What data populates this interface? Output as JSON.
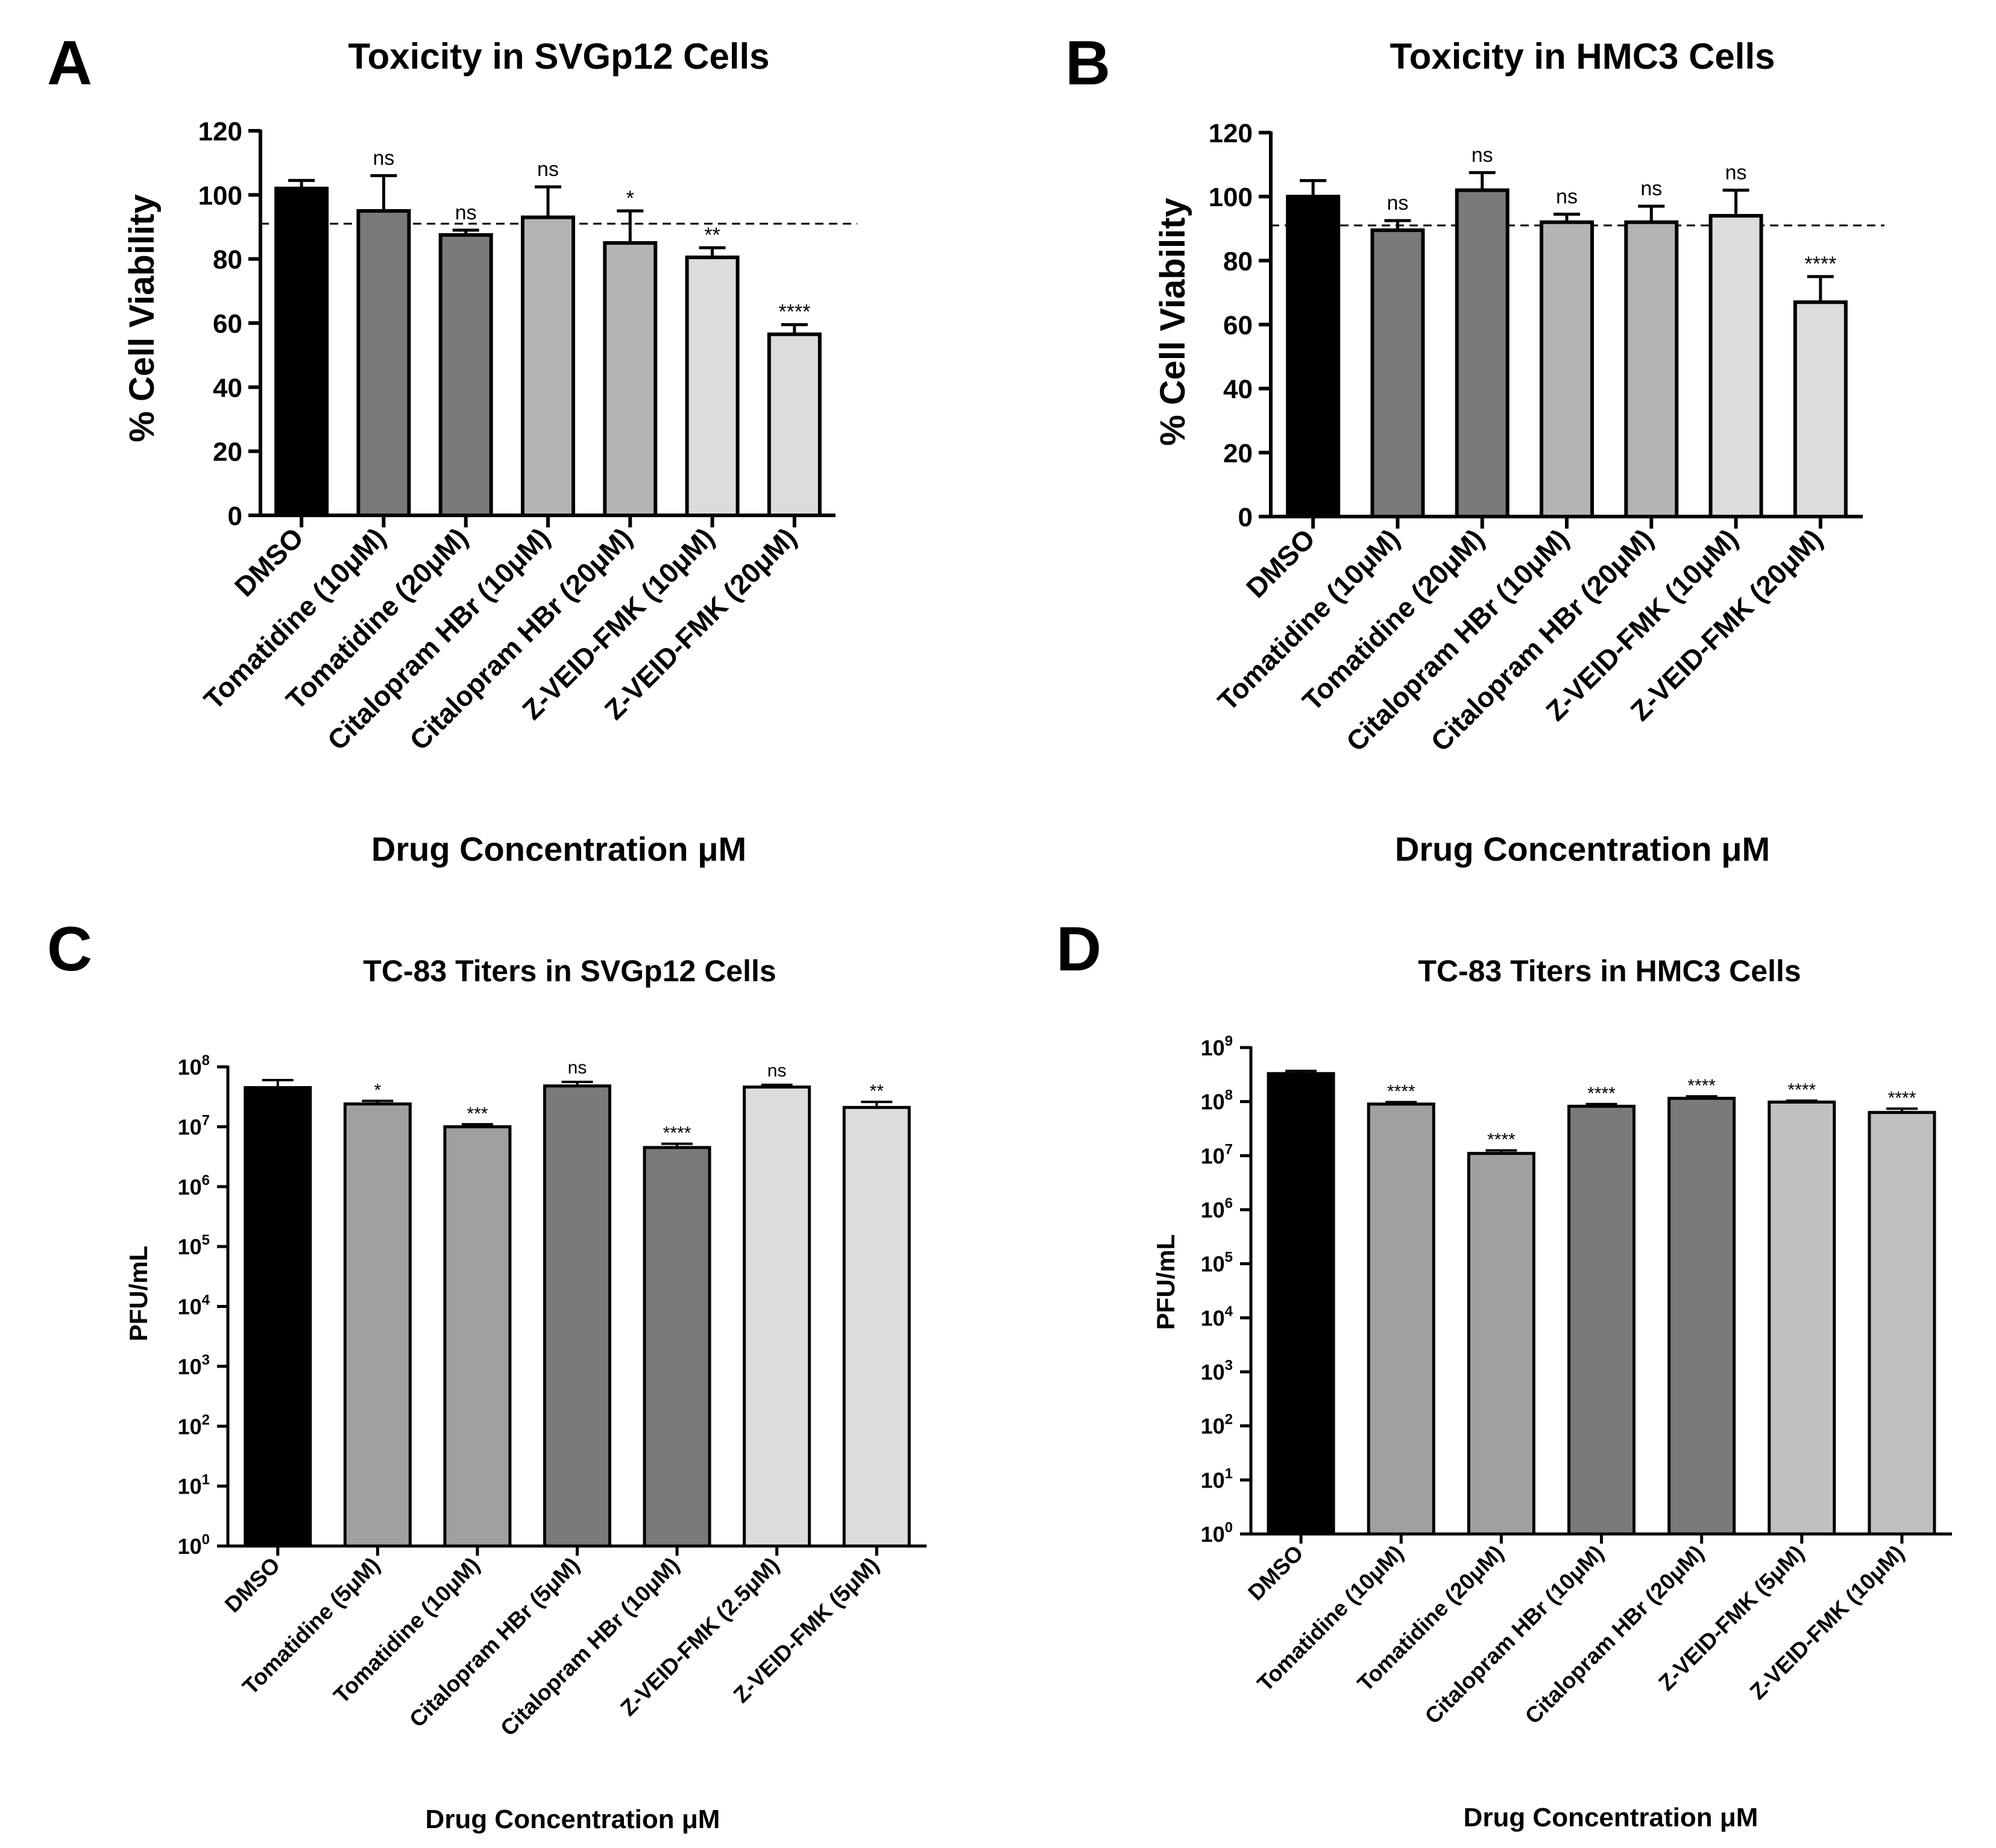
{
  "chart_data": [
    {
      "panel": "A",
      "type": "bar",
      "title": "Toxicity in SVGp12 Cells",
      "ylabel": "% Cell Viability",
      "xlabel": "Drug Concentration μM",
      "yscale": "linear",
      "ylim": [
        0,
        120
      ],
      "yticks": [
        "0",
        "20",
        "40",
        "60",
        "80",
        "100",
        "120"
      ],
      "reference_line": 91,
      "categories": [
        "DMSO",
        "Tomatidine (10μM)",
        "Tomatidine (20μM)",
        "Citalopram HBr (10μM)",
        "Citalopram HBr (20μM)",
        "Z-VEID-FMK (10μM)",
        "Z-VEID-FMK (20μM)"
      ],
      "values": [
        102,
        95,
        87.5,
        93,
        85,
        80.5,
        56.5
      ],
      "errors": [
        2.5,
        11,
        1.5,
        9.5,
        10,
        3,
        3
      ],
      "significance": [
        "",
        "ns",
        "ns",
        "ns",
        "*",
        "**",
        "****"
      ],
      "colors": [
        "#000000",
        "#7a7a7a",
        "#7a7a7a",
        "#b4b4b4",
        "#b4b4b4",
        "#dcdcdc",
        "#dcdcdc"
      ]
    },
    {
      "panel": "B",
      "type": "bar",
      "title": "Toxicity in HMC3 Cells",
      "ylabel": "% Cell Viability",
      "xlabel": "Drug Concentration μM",
      "yscale": "linear",
      "ylim": [
        0,
        120
      ],
      "yticks": [
        "0",
        "20",
        "40",
        "60",
        "80",
        "100",
        "120"
      ],
      "reference_line": 91,
      "categories": [
        "DMSO",
        "Tomatidine (10μM)",
        "Tomatidine (20μM)",
        "Citalopram HBr (10μM)",
        "Citalopram HBr (20μM)",
        "Z-VEID-FMK (10μM)",
        "Z-VEID-FMK (20μM)"
      ],
      "values": [
        100,
        89.5,
        102,
        92,
        92,
        94,
        67
      ],
      "errors": [
        5,
        3,
        5.5,
        2.5,
        5,
        8,
        8
      ],
      "significance": [
        "",
        "ns",
        "ns",
        "ns",
        "ns",
        "ns",
        "****"
      ],
      "colors": [
        "#000000",
        "#7a7a7a",
        "#7a7a7a",
        "#b4b4b4",
        "#b4b4b4",
        "#dcdcdc",
        "#dcdcdc"
      ]
    },
    {
      "panel": "C",
      "type": "bar",
      "title": "TC-83 Titers in SVGp12 Cells",
      "ylabel": "PFU/mL",
      "xlabel": "Drug Concentration μM",
      "yscale": "log10",
      "ylim_exponents": [
        0,
        8
      ],
      "categories": [
        "DMSO",
        "Tomatidine (5μM)",
        "Tomatidine (10μM)",
        "Citalopram HBr (5μM)",
        "Citalopram HBr (10μM)",
        "Z-VEID-FMK (2.5μM)",
        "Z-VEID-FMK (5μM)"
      ],
      "values": [
        45000000,
        24000000,
        10000000,
        48000000,
        4500000,
        46000000,
        21000000
      ],
      "error_tops": [
        60000000,
        27000000,
        11000000,
        56000000,
        5200000,
        50000000,
        26000000
      ],
      "significance": [
        "",
        "*",
        "***",
        "ns",
        "****",
        "ns",
        "**"
      ],
      "colors": [
        "#000000",
        "#a0a0a0",
        "#a0a0a0",
        "#7a7a7a",
        "#7a7a7a",
        "#dcdcdc",
        "#dcdcdc"
      ]
    },
    {
      "panel": "D",
      "type": "bar",
      "title": "TC-83 Titers in HMC3 Cells",
      "ylabel": "PFU/mL",
      "xlabel": "Drug Concentration μM",
      "yscale": "log10",
      "ylim_exponents": [
        0,
        9
      ],
      "categories": [
        "DMSO",
        "Tomatidine (10μM)",
        "Tomatidine (20μM)",
        "Citalopram HBr (10μM)",
        "Citalopram HBr (20μM)",
        "Z-VEID-FMK (5μM)",
        "Z-VEID-FMK (10μM)"
      ],
      "values": [
        330000000,
        90000000,
        11000000,
        82000000,
        115000000,
        98000000,
        63000000
      ],
      "error_tops": [
        370000000,
        98000000,
        12500000,
        90000000,
        125000000,
        104000000,
        74000000
      ],
      "significance": [
        "",
        "****",
        "****",
        "****",
        "****",
        "****",
        "****"
      ],
      "colors": [
        "#000000",
        "#a0a0a0",
        "#a0a0a0",
        "#7a7a7a",
        "#7a7a7a",
        "#c0c0c0",
        "#c0c0c0"
      ]
    }
  ]
}
